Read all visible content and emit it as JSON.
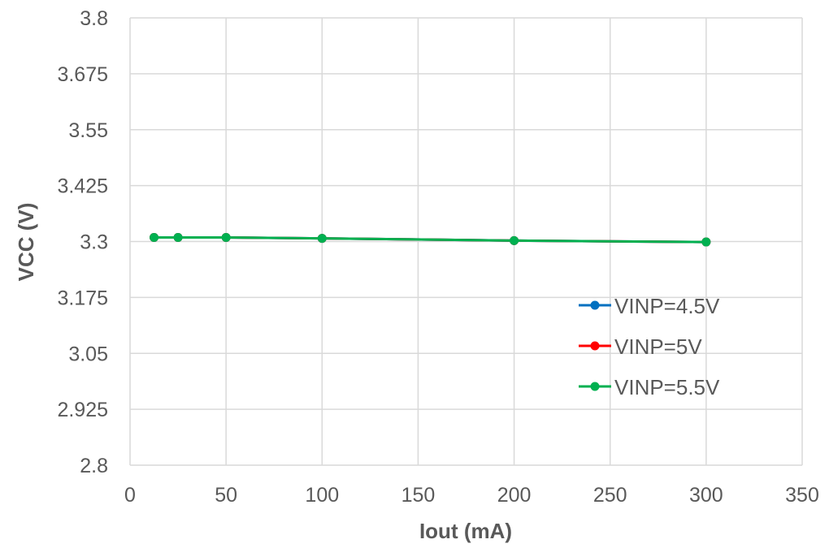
{
  "chart_data": {
    "type": "line",
    "title": "",
    "xlabel": "Iout (mA)",
    "ylabel": "VCC (V)",
    "xlim": [
      0,
      350
    ],
    "ylim": [
      2.8,
      3.8
    ],
    "x_ticks": [
      "0",
      "50",
      "100",
      "150",
      "200",
      "250",
      "300",
      "350"
    ],
    "y_ticks": [
      "2.8",
      "2.925",
      "3.05",
      "3.175",
      "3.3",
      "3.425",
      "3.55",
      "3.675",
      "3.8"
    ],
    "grid": true,
    "legend_position": "right",
    "series": [
      {
        "name": "VINP=4.5V",
        "color": "#0070c0",
        "x": [
          12.5,
          25,
          50,
          100,
          200,
          300
        ],
        "y": [
          3.309,
          3.309,
          3.309,
          3.307,
          3.302,
          3.299
        ]
      },
      {
        "name": "VINP=5V",
        "color": "#ff0000",
        "x": [
          12.5,
          25,
          50,
          100,
          200,
          300
        ],
        "y": [
          3.309,
          3.309,
          3.309,
          3.307,
          3.302,
          3.299
        ]
      },
      {
        "name": "VINP=5.5V",
        "color": "#00b050",
        "x": [
          12.5,
          25,
          50,
          100,
          200,
          300
        ],
        "y": [
          3.309,
          3.309,
          3.309,
          3.307,
          3.302,
          3.299
        ]
      }
    ]
  }
}
